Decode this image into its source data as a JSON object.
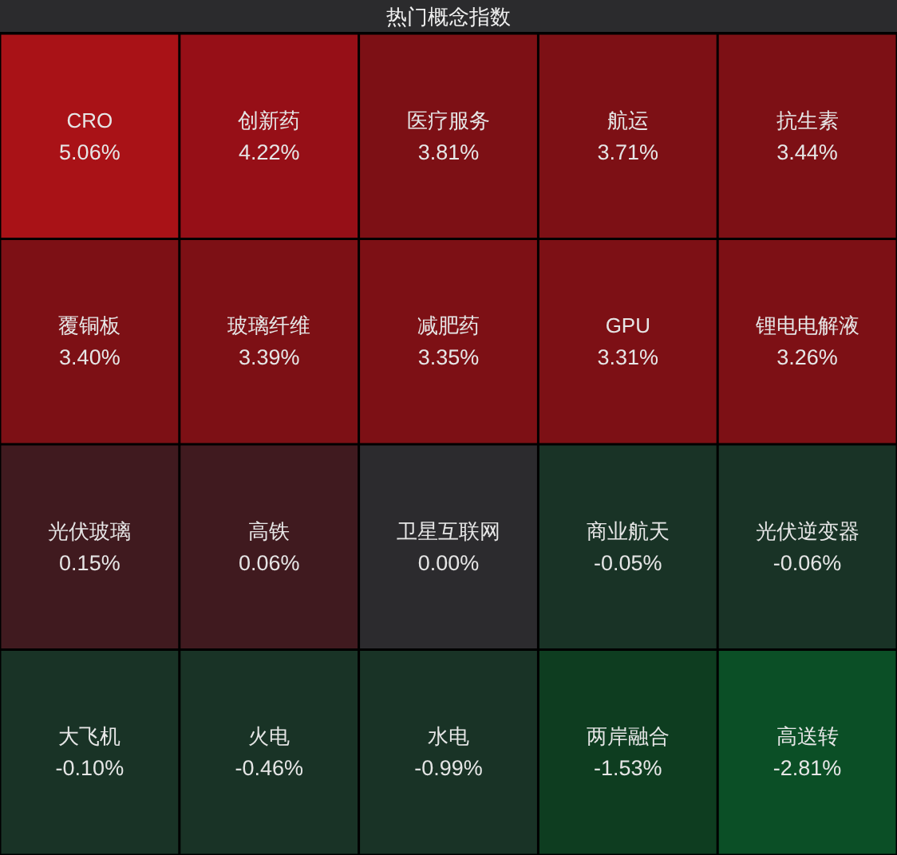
{
  "chart_data": {
    "type": "other",
    "title": "热门概念指数",
    "categories": [
      "CRO",
      "创新药",
      "医疗服务",
      "航运",
      "抗生素",
      "覆铜板",
      "玻璃纤维",
      "减肥药",
      "GPU",
      "锂电电解液",
      "光伏玻璃",
      "高铁",
      "卫星互联网",
      "商业航天",
      "光伏逆变器",
      "大飞机",
      "火电",
      "水电",
      "两岸融合",
      "高送转"
    ],
    "values": [
      5.06,
      4.22,
      3.81,
      3.71,
      3.44,
      3.4,
      3.39,
      3.35,
      3.31,
      3.26,
      0.15,
      0.06,
      0.0,
      -0.05,
      -0.06,
      -0.1,
      -0.46,
      -0.99,
      -1.53,
      -2.81
    ],
    "value_labels": [
      "5.06%",
      "4.22%",
      "3.81%",
      "3.71%",
      "3.44%",
      "3.40%",
      "3.39%",
      "3.35%",
      "3.31%",
      "3.26%",
      "0.15%",
      "0.06%",
      "0.00%",
      "-0.05%",
      "-0.06%",
      "-0.10%",
      "-0.46%",
      "-0.99%",
      "-1.53%",
      "-2.81%"
    ],
    "colors": [
      "#a91217",
      "#960f17",
      "#7d1015",
      "#7d1015",
      "#7d1015",
      "#7d1015",
      "#7d1015",
      "#7d1015",
      "#7d1015",
      "#7d1015",
      "#401a1f",
      "#401a1f",
      "#2c2b2e",
      "#193326",
      "#193326",
      "#193326",
      "#193326",
      "#193326",
      "#0e3d20",
      "#0b4f26"
    ]
  }
}
